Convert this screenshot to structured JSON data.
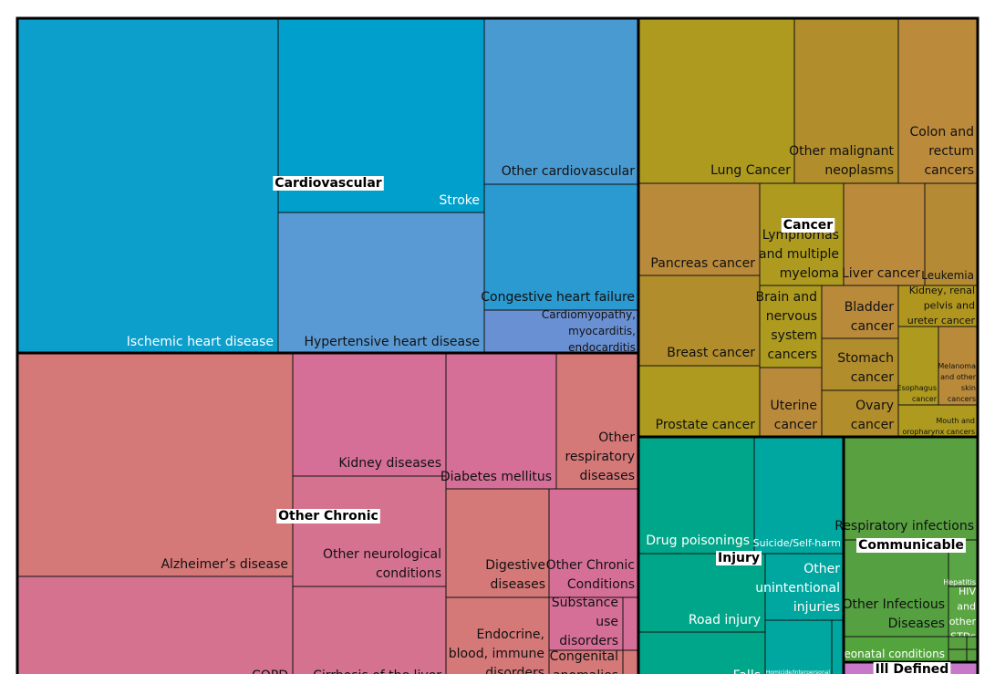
{
  "chart_data": {
    "type": "treemap",
    "groups": [
      {
        "name": "Cardiovascular",
        "color": "#0c9fcc",
        "items": [
          {
            "name": "Ischemic heart disease",
            "value": 100,
            "color": "#0c9fcc"
          },
          {
            "name": "Stroke",
            "value": 40,
            "color": "#009fcc"
          },
          {
            "name": "Hypertensive heart disease",
            "value": 35,
            "color": "#5a9ad4"
          },
          {
            "name": "Other cardiovascular",
            "value": 25,
            "color": "#4a9ad2"
          },
          {
            "name": "Congestive heart failure",
            "value": 16,
            "color": "#2a9ad0"
          },
          {
            "name": "Cardiomyopathy, myocarditis, endocarditis",
            "value": 7,
            "color": "#6a90d4"
          }
        ]
      },
      {
        "name": "Cancer",
        "color": "#ad9a1f",
        "items": [
          {
            "name": "Lung Cancer",
            "value": 28,
            "color": "#ad9a1f"
          },
          {
            "name": "Other malignant neoplasms",
            "value": 20,
            "color": "#b18d2b"
          },
          {
            "name": "Colon and rectum cancers",
            "value": 15,
            "color": "#bb8a3b"
          },
          {
            "name": "Pancreas cancer",
            "value": 12,
            "color": "#ba8a3b"
          },
          {
            "name": "Lymphomas and multiple myeloma",
            "value": 10,
            "color": "#ad9a1f"
          },
          {
            "name": "Liver cancer",
            "value": 9,
            "color": "#bb8a3b"
          },
          {
            "name": "Leukemia",
            "value": 7,
            "color": "#b58a34"
          },
          {
            "name": "Breast cancer",
            "value": 13,
            "color": "#b18d2b"
          },
          {
            "name": "Brain and nervous system cancers",
            "value": 6,
            "color": "#ad9a1f"
          },
          {
            "name": "Bladder cancer",
            "value": 4,
            "color": "#ba8a3b"
          },
          {
            "name": "Kidney, renal pelvis and ureter cancer",
            "value": 4,
            "color": "#b0961f"
          },
          {
            "name": "Stomach cancer",
            "value": 4,
            "color": "#b18d2b"
          },
          {
            "name": "Esophagus cancer",
            "value": 3,
            "color": "#ad9a1f"
          },
          {
            "name": "Melanoma and other skin cancers",
            "value": 3,
            "color": "#ba8a3b"
          },
          {
            "name": "Prostate cancer",
            "value": 11,
            "color": "#ad9a1f"
          },
          {
            "name": "Uterine cancer",
            "value": 5,
            "color": "#ba8a3b"
          },
          {
            "name": "Ovary cancer",
            "value": 4,
            "color": "#b18d2b"
          },
          {
            "name": "Mouth and oropharynx cancers",
            "value": 3,
            "color": "#ad9a1f"
          }
        ]
      },
      {
        "name": "Other Chronic",
        "color": "#d77878",
        "items": [
          {
            "name": "Alzheimer’s disease",
            "value": 55,
            "color": "#d57878"
          },
          {
            "name": "COPD",
            "value": 35,
            "color": "#d5728f"
          },
          {
            "name": "Kidney diseases",
            "value": 22,
            "color": "#d66f98"
          },
          {
            "name": "Other neurological conditions",
            "value": 20,
            "color": "#d5728f"
          },
          {
            "name": "Cirrhosis of the liver",
            "value": 15,
            "color": "#d5728f"
          },
          {
            "name": "Diabetes mellitus",
            "value": 18,
            "color": "#d66f98"
          },
          {
            "name": "Other respiratory diseases",
            "value": 13,
            "color": "#d57878"
          },
          {
            "name": "Digestive diseases",
            "value": 13,
            "color": "#d57878"
          },
          {
            "name": "Other Chronic Conditions",
            "value": 12,
            "color": "#d66f98"
          },
          {
            "name": "Endocrine, blood, immune disorders",
            "value": 11,
            "color": "#d57878"
          },
          {
            "name": "Substance use disorders",
            "value": 6,
            "color": "#d66f98"
          },
          {
            "name": "Congenital anomalies",
            "value": 4,
            "color": "#d57878"
          }
        ]
      },
      {
        "name": "Injury",
        "color": "#00a689",
        "items": [
          {
            "name": "Drug poisonings",
            "value": 19,
            "color": "#00a689"
          },
          {
            "name": "Suicide/Self-harm",
            "value": 15,
            "color": "#00a7a0"
          },
          {
            "name": "Road injury",
            "value": 14,
            "color": "#00a689"
          },
          {
            "name": "Other unintentional injuries",
            "value": 9,
            "color": "#00a7a0"
          },
          {
            "name": "Falls",
            "value": 8,
            "color": "#00a689"
          },
          {
            "name": "Homicide/Interpersonal violence",
            "value": 4,
            "color": "#00a7a0"
          }
        ]
      },
      {
        "name": "Communicable",
        "color": "#58a040",
        "items": [
          {
            "name": "Respiratory infections",
            "value": 15,
            "color": "#58a040"
          },
          {
            "name": "Other Infectious Diseases",
            "value": 13,
            "color": "#55a040"
          },
          {
            "name": "HIV and other STDs",
            "value": 3,
            "color": "#59a642"
          },
          {
            "name": "Hepatitis",
            "value": 1,
            "color": "#5aa545"
          },
          {
            "name": "Neonatal conditions",
            "value": 2,
            "color": "#54a43e"
          }
        ]
      },
      {
        "name": "Ill Defined",
        "color": "#c878c8",
        "items": [
          {
            "name": "Ill Defined",
            "value": 3,
            "color": "#c878c8"
          }
        ]
      }
    ]
  }
}
